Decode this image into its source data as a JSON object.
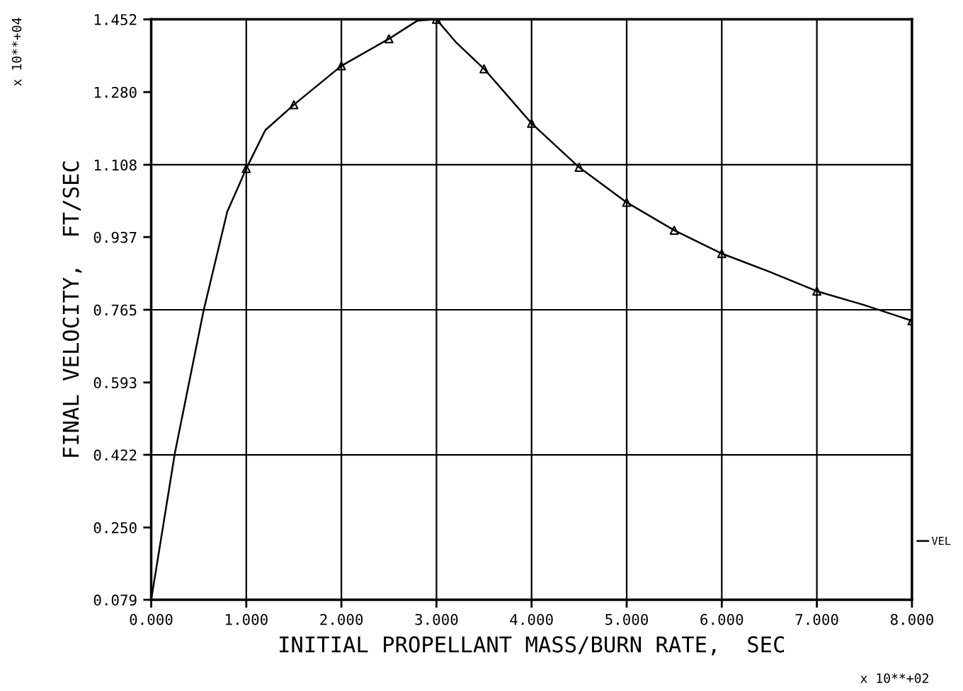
{
  "chart_data": {
    "type": "line",
    "xlabel": "INITIAL PROPELLANT MASS/BURN RATE,  SEC",
    "ylabel": "FINAL VELOCITY,  FT/SEC",
    "annotations": [
      "x 10**+04",
      "x 10**+02"
    ],
    "series": [
      {
        "name": "VEL",
        "type": "line",
        "color": "#000000",
        "marker": "none",
        "x": [
          0,
          0.25,
          0.55,
          0.8,
          1.0,
          1.2,
          1.5,
          2.0,
          2.5,
          2.8,
          3.0,
          3.2,
          3.5,
          4.0,
          4.5,
          5.0,
          5.5,
          6.0,
          6.5,
          7.0,
          7.5,
          8.0
        ],
        "values": [
          0.079,
          0.427,
          0.762,
          0.997,
          1.099,
          1.19,
          1.25,
          1.342,
          1.406,
          1.449,
          1.452,
          1.399,
          1.335,
          1.206,
          1.102,
          1.019,
          0.953,
          0.898,
          0.855,
          0.809,
          0.776,
          0.739
        ]
      },
      {
        "type": "scatter",
        "color": "#000000",
        "marker": "triangle",
        "x": [
          1.0,
          1.5,
          2.0,
          2.5,
          3.0,
          3.5,
          4.0,
          4.5,
          5.0,
          5.5,
          6.0,
          7.0,
          8.0
        ],
        "values": [
          1.099,
          1.25,
          1.342,
          1.406,
          1.452,
          1.335,
          1.206,
          1.102,
          1.019,
          0.953,
          0.898,
          0.809,
          0.739
        ]
      }
    ],
    "xlim": [
      0,
      8
    ],
    "xticks": [
      {
        "value": 0,
        "label": "0.000"
      },
      {
        "value": 1,
        "label": "1.000"
      },
      {
        "value": 2,
        "label": "2.000"
      },
      {
        "value": 3,
        "label": "3.000"
      },
      {
        "value": 4,
        "label": "4.000"
      },
      {
        "value": 5,
        "label": "5.000"
      },
      {
        "value": 6,
        "label": "6.000"
      },
      {
        "value": 7,
        "label": "7.000"
      },
      {
        "value": 8,
        "label": "8.000"
      }
    ],
    "ylim": [
      0.079,
      1.452
    ],
    "yticks": [
      0.079,
      {
        "value": 0.25,
        "label": "0.250"
      },
      0.422,
      0.593,
      0.765,
      0.937,
      1.108,
      {
        "value": 1.28,
        "label": "1.280"
      },
      1.452
    ],
    "ref_lines": [
      {
        "axis": "y",
        "value": 0.422
      },
      {
        "axis": "y",
        "value": 0.765
      },
      {
        "axis": "y",
        "value": 1.108
      },
      {
        "axis": "y",
        "value": 1.452
      }
    ],
    "grid": "x",
    "legend": "right"
  }
}
